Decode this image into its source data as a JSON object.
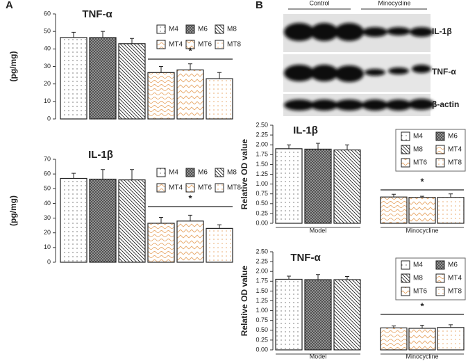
{
  "panel_labels": [
    "A",
    "B"
  ],
  "blot": {
    "groups": [
      "Control",
      "Minocycline"
    ],
    "rows": [
      "IL-1β",
      "TNF-α",
      "β-actin"
    ]
  },
  "chart_data": [
    {
      "type": "bar",
      "title": "TNF-α",
      "y_label": "(pg/mg)",
      "categories": [
        "M4",
        "M6",
        "M8",
        "MT4",
        "MT6",
        "MT8"
      ],
      "values": [
        46.5,
        46.5,
        43,
        26.5,
        28,
        23
      ],
      "errors": [
        3,
        3.5,
        3,
        3.5,
        3.5,
        3.5
      ],
      "colors": [
        "#222222",
        "#4a4a4a",
        "#222222",
        "#e8a86a",
        "#e8a86a",
        "#e8a86a"
      ],
      "ylim": [
        0,
        60
      ],
      "yticks": [
        0,
        10,
        20,
        30,
        40,
        50,
        60
      ],
      "annotation": "*"
    },
    {
      "type": "bar",
      "title": "IL-1β",
      "y_label": "(pg/mg)",
      "categories": [
        "M4",
        "M6",
        "M8",
        "MT4",
        "MT6",
        "MT8"
      ],
      "values": [
        57,
        56.5,
        56,
        26.5,
        28,
        23
      ],
      "errors": [
        3.5,
        6.5,
        7,
        4,
        4,
        2.5
      ],
      "colors": [
        "#222222",
        "#4a4a4a",
        "#222222",
        "#e8a86a",
        "#e8a86a",
        "#e8a86a"
      ],
      "ylim": [
        0,
        70
      ],
      "yticks": [
        0,
        10,
        20,
        30,
        40,
        50,
        60,
        70
      ],
      "annotation": "*"
    },
    {
      "type": "bar",
      "title": "IL-1β",
      "y_label": "Relative OD value",
      "categories": [
        "M4",
        "M6",
        "M8",
        "MT4",
        "MT6",
        "MT8"
      ],
      "values": [
        1.9,
        1.89,
        1.87,
        0.67,
        0.66,
        0.66
      ],
      "errors": [
        0.1,
        0.15,
        0.13,
        0.07,
        0.03,
        0.09
      ],
      "colors": [
        "#222222",
        "#4a4a4a",
        "#222222",
        "#e8a86a",
        "#e8a86a",
        "#e8a86a"
      ],
      "ylim": [
        0,
        2.5
      ],
      "yticks": [
        {
          "value": 0,
          "label": "0.00"
        },
        {
          "value": 0.25,
          "label": "0.25"
        },
        {
          "value": 0.5,
          "label": "0.50"
        },
        {
          "value": 0.75,
          "label": "0.75"
        },
        {
          "value": 1,
          "label": "1.00"
        },
        {
          "value": 1.25,
          "label": "1.25"
        },
        {
          "value": 1.5,
          "label": "1.50"
        },
        {
          "value": 1.75,
          "label": "1.75"
        },
        {
          "value": 2,
          "label": "2.00"
        },
        {
          "value": 2.25,
          "label": "2.25"
        },
        {
          "value": 2.5,
          "label": "2.50"
        }
      ],
      "annotation": "*",
      "groups": [
        "Model",
        "Minocycline"
      ]
    },
    {
      "type": "bar",
      "title": "TNF-α",
      "y_label": "Relative OD value",
      "categories": [
        "M4",
        "M6",
        "M8",
        "MT4",
        "MT6",
        "MT8"
      ],
      "values": [
        1.8,
        1.79,
        1.79,
        0.56,
        0.55,
        0.57
      ],
      "errors": [
        0.08,
        0.13,
        0.08,
        0.05,
        0.08,
        0.07
      ],
      "colors": [
        "#222222",
        "#4a4a4a",
        "#222222",
        "#e8a86a",
        "#e8a86a",
        "#e8a86a"
      ],
      "ylim": [
        0,
        2.5
      ],
      "yticks": [
        {
          "value": 0,
          "label": "0.00"
        },
        {
          "value": 0.25,
          "label": "0.25"
        },
        {
          "value": 0.5,
          "label": "0.50"
        },
        {
          "value": 0.75,
          "label": "0.75"
        },
        {
          "value": 1,
          "label": "1.00"
        },
        {
          "value": 1.25,
          "label": "1.25"
        },
        {
          "value": 1.5,
          "label": "1.50"
        },
        {
          "value": 1.75,
          "label": "1.75"
        },
        {
          "value": 2,
          "label": "2.00"
        },
        {
          "value": 2.25,
          "label": "2.25"
        },
        {
          "value": 2.5,
          "label": "2.50"
        }
      ],
      "annotation": "*",
      "groups": [
        "Model",
        "Minocycline"
      ]
    }
  ]
}
